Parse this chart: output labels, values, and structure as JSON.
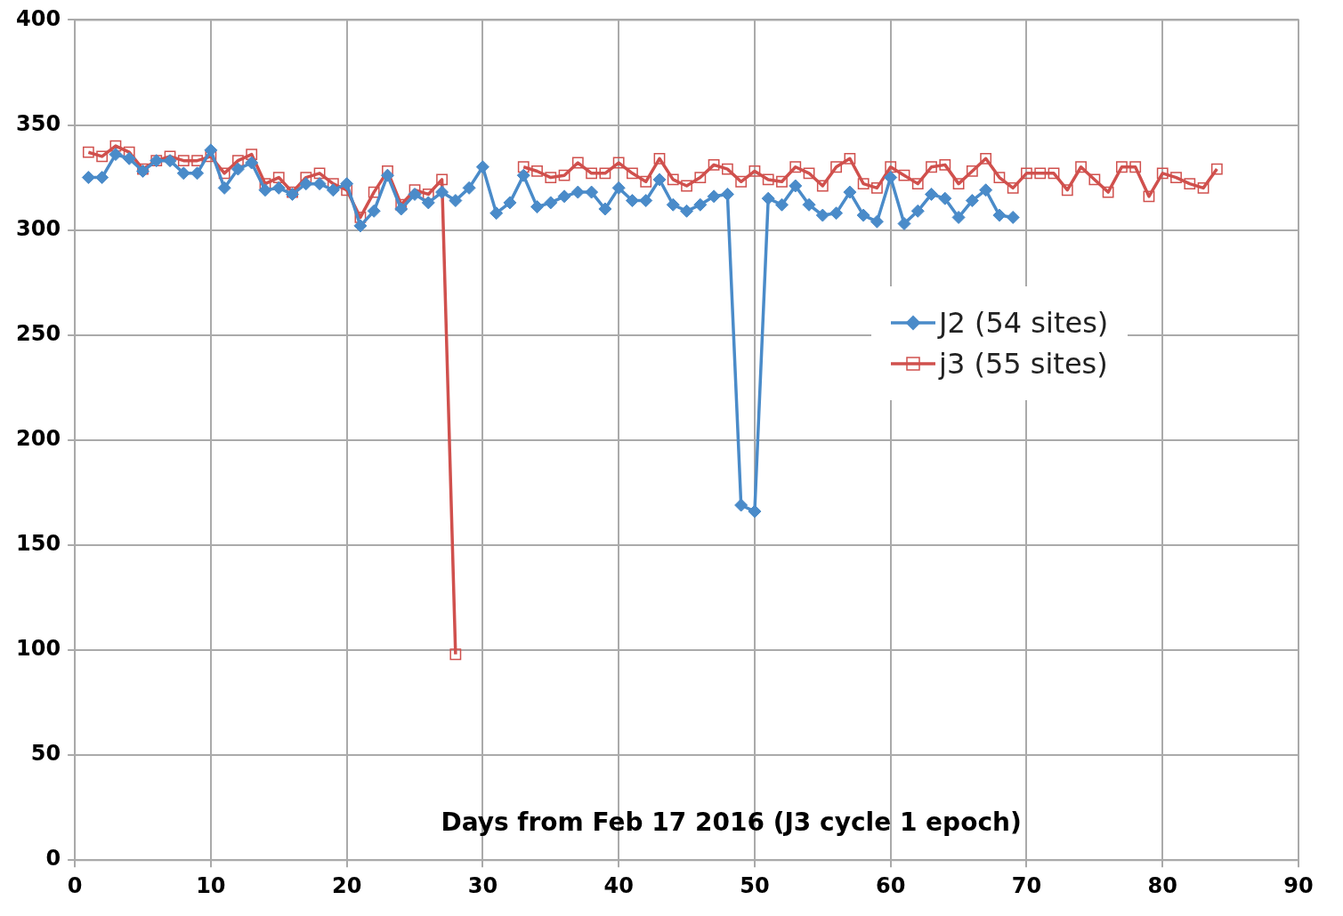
{
  "chart_data": {
    "type": "line",
    "xlabel": "Days from Feb 17 2016 (J3 cycle 1 epoch)",
    "xlim": [
      0,
      90
    ],
    "xticks": [
      0,
      10,
      20,
      30,
      40,
      50,
      60,
      70,
      80,
      90
    ],
    "ylim": [
      0,
      400
    ],
    "yticks": [
      0,
      50,
      100,
      150,
      200,
      250,
      300,
      350,
      400
    ],
    "grid": true,
    "legend": "right",
    "line_style": "solid",
    "series": [
      {
        "name": "J2 (54 sites)",
        "color": "#4a8bc9",
        "marker": "diamond",
        "x": [
          1,
          2,
          3,
          4,
          5,
          6,
          7,
          8,
          9,
          10,
          11,
          12,
          13,
          14,
          15,
          16,
          17,
          18,
          19,
          20,
          21,
          22,
          23,
          24,
          25,
          26,
          27,
          28,
          29,
          30,
          31,
          32,
          33,
          34,
          35,
          36,
          37,
          38,
          39,
          40,
          41,
          42,
          43,
          44,
          45,
          46,
          47,
          48,
          49,
          50,
          51,
          52,
          53,
          54,
          55,
          56,
          57,
          58,
          59,
          60,
          61,
          62,
          63,
          64,
          65,
          66,
          67,
          68,
          69
        ],
        "values": [
          325,
          325,
          336,
          334,
          328,
          333,
          333,
          327,
          327,
          338,
          320,
          329,
          332,
          319,
          320,
          317,
          322,
          322,
          319,
          322,
          302,
          309,
          326,
          310,
          317,
          313,
          318,
          314,
          320,
          330,
          308,
          313,
          326,
          311,
          313,
          316,
          318,
          318,
          310,
          320,
          314,
          314,
          324,
          312,
          309,
          312,
          316,
          317,
          169,
          166,
          315,
          312,
          321,
          312,
          307,
          308,
          318,
          307,
          304,
          325,
          303,
          309,
          317,
          315,
          306,
          314,
          319,
          307,
          306
        ]
      },
      {
        "name": "j3 (55 sites)",
        "color": "#d0504d",
        "marker": "square",
        "x": [
          1,
          2,
          3,
          4,
          5,
          6,
          7,
          8,
          9,
          10,
          11,
          12,
          13,
          14,
          15,
          16,
          17,
          18,
          19,
          20,
          21,
          22,
          23,
          24,
          25,
          26,
          27,
          28,
          29,
          30,
          31,
          32,
          33,
          34,
          35,
          36,
          37,
          38,
          39,
          40,
          41,
          42,
          43,
          44,
          45,
          46,
          47,
          48,
          49,
          50,
          51,
          52,
          53,
          54,
          55,
          56,
          57,
          58,
          59,
          60,
          61,
          62,
          63,
          64,
          65,
          66,
          67,
          68,
          69,
          70,
          71,
          72,
          73,
          74,
          75,
          76,
          77,
          78,
          79,
          80,
          81,
          82,
          83,
          84
        ],
        "values": [
          337,
          335,
          340,
          337,
          329,
          333,
          335,
          333,
          333,
          335,
          327,
          333,
          336,
          322,
          325,
          318,
          325,
          327,
          322,
          319,
          306,
          318,
          328,
          312,
          319,
          317,
          324,
          98,
          null,
          null,
          null,
          null,
          330,
          328,
          325,
          326,
          332,
          327,
          327,
          332,
          327,
          323,
          334,
          324,
          321,
          325,
          331,
          329,
          323,
          328,
          324,
          323,
          330,
          327,
          321,
          330,
          334,
          322,
          320,
          330,
          326,
          322,
          330,
          331,
          322,
          328,
          334,
          325,
          320,
          327,
          327,
          327,
          319,
          330,
          324,
          318,
          330,
          330,
          316,
          327,
          325,
          322,
          320,
          329
        ]
      }
    ]
  }
}
